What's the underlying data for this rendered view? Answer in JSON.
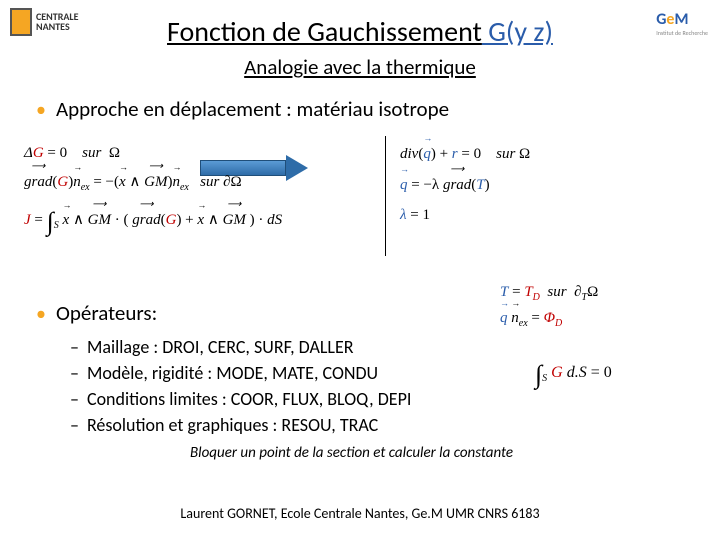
{
  "logos": {
    "left_line1": "CENTRALE",
    "left_line2": "NANTES",
    "right_g": "G",
    "right_e": "e",
    "right_m": "M",
    "right_sub": "Institut de Recherche"
  },
  "title": {
    "main": "Fonction de Gauchissement",
    "gz": " G(y z)"
  },
  "subtitle": "Analogie avec la thermique",
  "bullet1": "Approche en déplacement : matériau isotrope",
  "eq_left": {
    "r1": "ΔG = 0    sur  Ω",
    "r2_pre": "grad(G)",
    "r2_mid": "n",
    "r2_sub": "ex",
    "r2_post": " = −(x ∧ GM)",
    "r2_n2": "n",
    "r2_sub2": "ex",
    "r2_end": "   sur  ∂Ω",
    "r3_j": "J = ",
    "r3_int": "∫",
    "r3_s": "S",
    "r3_body": " x ∧ GM · ( grad(G) + x ∧ GM ) · dS"
  },
  "eq_right": {
    "r1_pre": "div(",
    "r1_q": "q",
    "r1_post": ") + ",
    "r1_r": "r",
    "r1_end": " = 0    sur  Ω",
    "r2_q": "q",
    "r2_mid": " = −λ ",
    "r2_grad": "grad",
    "r2_end": "(T)",
    "r3": "λ = 1"
  },
  "bullet2": "Opérateurs:",
  "sublist": {
    "l1": "Maillage : DROI, CERC, SURF, DALLER",
    "l2": "Modèle, rigidité : MODE, MATE, CONDU",
    "l3": "Conditions limites : COOR, FLUX, BLOQ, DEPI",
    "l4": "Résolution et graphiques : RESOU, TRAC"
  },
  "eq_bc": {
    "r1_t": "T = ",
    "r1_td": "T",
    "r1_dsub": "D",
    "r1_end": "  sur   ∂",
    "r1_dsub2": "T",
    "r1_omega": "Ω",
    "r2_q": "q",
    "r2_n": " n",
    "r2_sub": "ex",
    "r2_eq": " = ",
    "r2_phi": "Φ",
    "r2_phisub": "D"
  },
  "eq_int": {
    "int": "∫",
    "s": "S",
    "body": " G d.S = 0"
  },
  "note": "Bloquer un point  de la section et calculer la constante",
  "footer": "Laurent GORNET, Ecole Centrale Nantes, Ge.M UMR CNRS 6183",
  "colors": {
    "accent_orange": "#f5a623",
    "accent_blue": "#2a5caa",
    "red": "#c00000"
  }
}
